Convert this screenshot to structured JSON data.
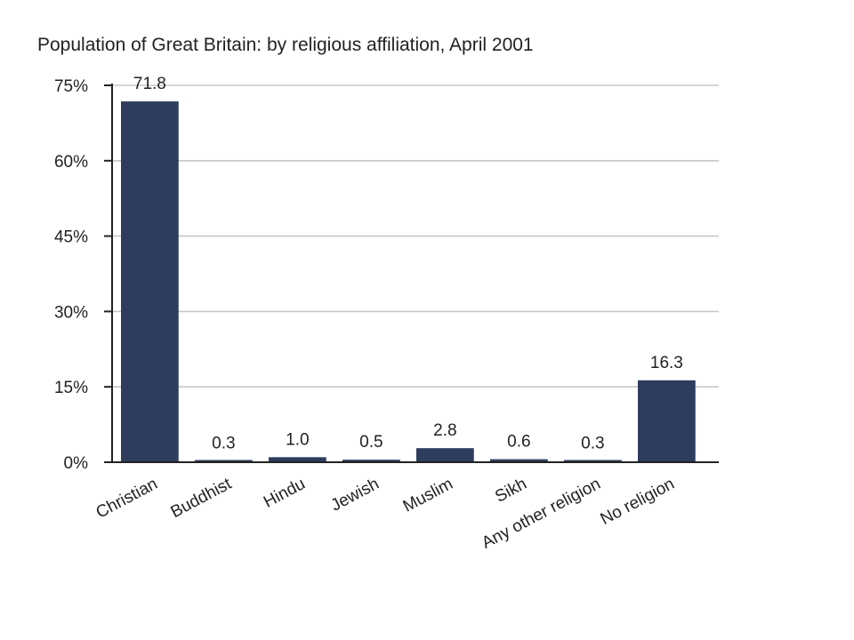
{
  "chart_data": {
    "type": "bar",
    "title": "Population of Great Britain: by religious affiliation, April 2001",
    "xlabel": "",
    "ylabel": "",
    "categories": [
      "Christian",
      "Buddhist",
      "Hindu",
      "Jewish",
      "Muslim",
      "Sikh",
      "Any other religion",
      "No religion"
    ],
    "values": [
      71.8,
      0.3,
      1.0,
      0.5,
      2.8,
      0.6,
      0.3,
      16.3
    ],
    "value_labels": [
      "71.8",
      "0.3",
      "1.0",
      "0.5",
      "2.8",
      "0.6",
      "0.3",
      "16.3"
    ],
    "ylim": [
      0,
      75
    ],
    "yticks": [
      0,
      15,
      30,
      45,
      60,
      75
    ],
    "ytick_labels": [
      "0%",
      "15%",
      "30%",
      "45%",
      "60%",
      "75%"
    ],
    "grid": true,
    "legend": "none",
    "bar_color": "#2e3d5e",
    "grid_color": "#c8c8c8"
  }
}
